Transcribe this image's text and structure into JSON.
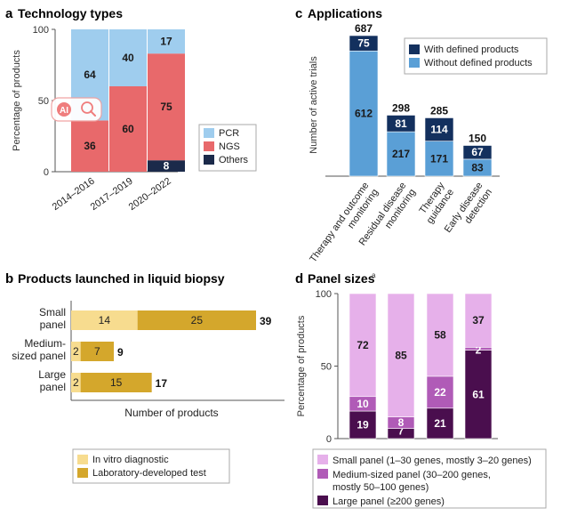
{
  "chart_data": [
    {
      "id": "a",
      "letter": "a",
      "type": "bar",
      "stacked": true,
      "orientation": "vertical",
      "title": "Technology types",
      "ylabel": "Percentage of products",
      "ylim": [
        0,
        100
      ],
      "yticks": [
        0,
        50,
        100
      ],
      "categories": [
        "2014–2016",
        "2017–2019",
        "2020–2022"
      ],
      "series": [
        {
          "name": "Others",
          "color": "#1b2a4a",
          "values": [
            0,
            0,
            8
          ],
          "labels": [
            "",
            "",
            "8"
          ]
        },
        {
          "name": "NGS",
          "color": "#e8696b",
          "values": [
            36,
            60,
            75
          ],
          "labels": [
            "36",
            "60",
            "75"
          ]
        },
        {
          "name": "PCR",
          "color": "#9fcdee",
          "values": [
            64,
            40,
            17
          ],
          "labels": [
            "64",
            "40",
            "17"
          ]
        }
      ],
      "legend": [
        "PCR",
        "NGS",
        "Others"
      ],
      "legend_position": "right"
    },
    {
      "id": "c",
      "letter": "c",
      "type": "bar",
      "stacked": true,
      "orientation": "vertical",
      "title": "Applications",
      "ylabel": "Number of active trials",
      "categories": [
        "Therapy and outcome monitoring",
        "Residual disease monitoring",
        "Therapy guidance",
        "Early disease detection"
      ],
      "category_lines": [
        [
          "Therapy and outcome",
          "monitoring"
        ],
        [
          "Residual disease",
          "monitoring"
        ],
        [
          "Therapy",
          "guidance"
        ],
        [
          "Early disease",
          "detection"
        ]
      ],
      "totals": [
        687,
        298,
        285,
        150
      ],
      "series": [
        {
          "name": "Without defined products",
          "color": "#5a9fd6",
          "values": [
            612,
            217,
            171,
            83
          ]
        },
        {
          "name": "With defined products",
          "color": "#13305e",
          "values": [
            75,
            81,
            114,
            67
          ]
        }
      ],
      "legend": [
        "With defined products",
        "Without defined products"
      ],
      "legend_position": "top-right"
    },
    {
      "id": "b",
      "letter": "b",
      "type": "bar",
      "stacked": true,
      "orientation": "horizontal",
      "title": "Products launched in liquid biopsy",
      "xlabel": "Number of products",
      "categories": [
        "Small panel",
        "Medium-sized panel",
        "Large panel"
      ],
      "category_lines": [
        [
          "Small",
          "panel"
        ],
        [
          "Medium-",
          "sized panel"
        ],
        [
          "Large",
          "panel"
        ]
      ],
      "totals": [
        39,
        9,
        17
      ],
      "xlim": [
        0,
        39
      ],
      "series": [
        {
          "name": "In vitro diagnostic",
          "color": "#f7dc8f",
          "values": [
            14,
            2,
            2
          ]
        },
        {
          "name": "Laboratory-developed test",
          "color": "#d4a72c",
          "values": [
            25,
            7,
            15
          ]
        }
      ],
      "legend": [
        "In vitro diagnostic",
        "Laboratory-developed test"
      ],
      "legend_position": "bottom"
    },
    {
      "id": "d",
      "letter": "d",
      "type": "bar",
      "stacked": true,
      "orientation": "vertical",
      "title": "Panel sizes",
      "title_superscript": "a",
      "ylabel": "Percentage of products",
      "ylim": [
        0,
        100
      ],
      "yticks": [
        0,
        50,
        100
      ],
      "categories": [
        "",
        "",
        "",
        ""
      ],
      "series": [
        {
          "name": "Large panel (≥200 genes)",
          "color": "#4a0e4e",
          "values": [
            19,
            7,
            21,
            61
          ],
          "labels": [
            "19",
            "7",
            "21",
            "61"
          ]
        },
        {
          "name": "Medium-sized panel (30–200 genes, mostly 50–100 genes)",
          "color": "#b05bb7",
          "values": [
            10,
            8,
            22,
            2
          ],
          "labels": [
            "10",
            "8",
            "22",
            "2"
          ]
        },
        {
          "name": "Small panel (1–30 genes, mostly 3–20 genes)",
          "color": "#e6b0ea",
          "values": [
            72,
            85,
            58,
            37
          ],
          "labels": [
            "72",
            "85",
            "58",
            "37"
          ]
        }
      ],
      "legend_lines": [
        {
          "color": "#e6b0ea",
          "lines": [
            "Small panel (1–30 genes, mostly 3–20 genes)"
          ]
        },
        {
          "color": "#b05bb7",
          "lines": [
            "Medium-sized panel (30–200 genes,",
            "mostly 50–100 genes)"
          ]
        },
        {
          "color": "#4a0e4e",
          "lines": [
            "Large panel (≥200 genes)"
          ]
        }
      ],
      "legend_position": "bottom"
    }
  ],
  "overlay": {
    "badge_text": "AI"
  }
}
